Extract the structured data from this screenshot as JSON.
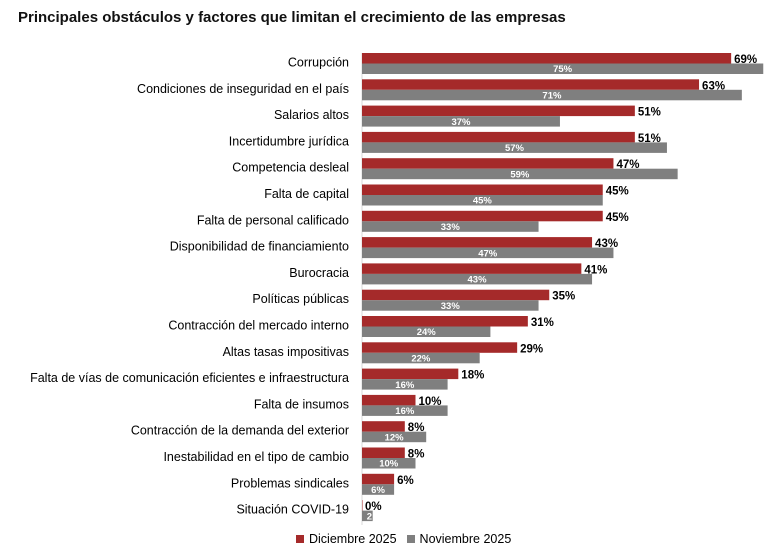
{
  "chart_data": {
    "type": "bar",
    "orientation": "horizontal",
    "title": "Principales obstáculos y factores que limitan el crecimiento de las empresas",
    "categories": [
      "Corrupción",
      "Condiciones de inseguridad en el país",
      "Salarios altos",
      "Incertidumbre jurídica",
      "Competencia desleal",
      "Falta de capital",
      "Falta de personal calificado",
      "Disponibilidad de financiamiento",
      "Burocracia",
      "Políticas públicas",
      "Contracción del mercado interno",
      "Altas tasas impositivas",
      "Falta de vías de comunicación eficientes e infraestructura",
      "Falta de insumos",
      "Contracción de la demanda del exterior",
      "Inestabilidad en el tipo de cambio",
      "Problemas sindicales",
      "Situación COVID-19"
    ],
    "series": [
      {
        "name": "Diciembre 2025",
        "color": "#a52a2a",
        "values": [
          69,
          63,
          51,
          51,
          47,
          45,
          45,
          43,
          41,
          35,
          31,
          29,
          18,
          10,
          8,
          8,
          6,
          0
        ],
        "labels": [
          "69%",
          "63%",
          "51%",
          "51%",
          "47%",
          "45%",
          "45%",
          "43%",
          "41%",
          "35%",
          "31%",
          "29%",
          "18%",
          "10%",
          "8%",
          "8%",
          "6%",
          "0%"
        ]
      },
      {
        "name": "Noviembre 2025",
        "color": "#7f7f7f",
        "values": [
          75,
          71,
          37,
          57,
          59,
          45,
          33,
          47,
          43,
          33,
          24,
          22,
          16,
          16,
          12,
          10,
          6,
          2
        ],
        "labels": [
          "75%",
          "71%",
          "37%",
          "57%",
          "59%",
          "45%",
          "33%",
          "47%",
          "43%",
          "33%",
          "24%",
          "22%",
          "16%",
          "16%",
          "12%",
          "10%",
          "6%",
          "2"
        ]
      }
    ],
    "xlim": [
      0,
      75
    ],
    "grid": false,
    "legend_position": "bottom"
  }
}
